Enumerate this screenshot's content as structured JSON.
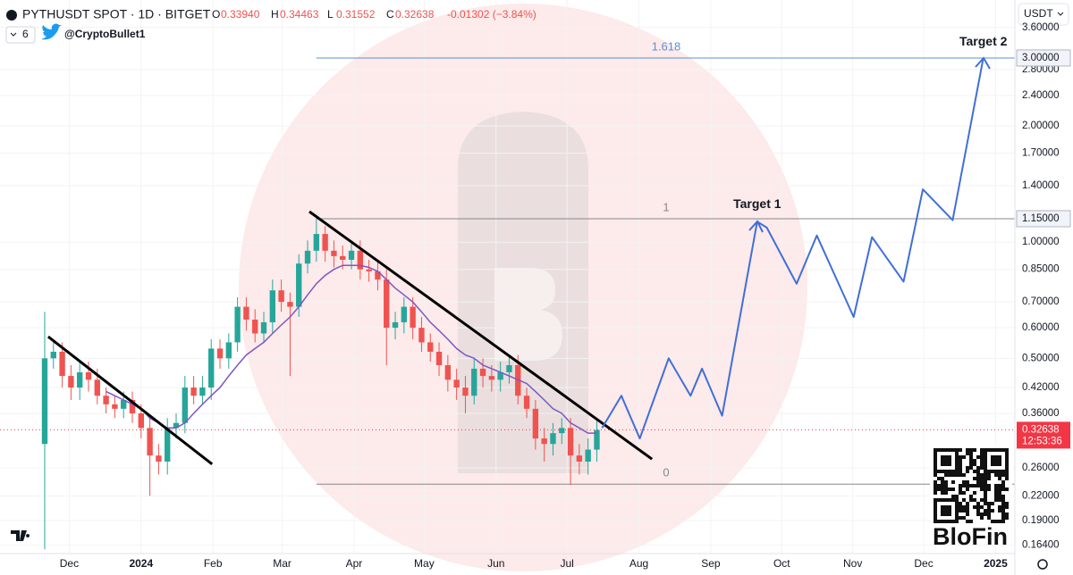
{
  "header": {
    "symbol": "PYTHUSDT SPOT · 1D · BITGET",
    "open_label": "O",
    "open": "0.33940",
    "high_label": "H",
    "high": "0.34463",
    "low_label": "L",
    "low": "0.31552",
    "close_label": "C",
    "close": "0.32638",
    "change": "-0.01302 (−3.84%)",
    "indicator_count": "6",
    "author": "@CryptoBullet1",
    "currency": "USDT"
  },
  "watermark": "BloFin",
  "chart_data": {
    "type": "candlestick",
    "log_scale": true,
    "xlim": [
      -5.1,
      110.7
    ],
    "ylim": [
      0.1527,
      4.24
    ],
    "xticks": [
      {
        "value": 2.8,
        "label": "Dec"
      },
      {
        "value": 11,
        "label": "2024"
      },
      {
        "value": 19.2,
        "label": "Feb"
      },
      {
        "value": 27.1,
        "label": "Mar"
      },
      {
        "value": 35.3,
        "label": "Apr"
      },
      {
        "value": 43.3,
        "label": "May"
      },
      {
        "value": 51.5,
        "label": "Jun"
      },
      {
        "value": 59.6,
        "label": "Jul"
      },
      {
        "value": 67.8,
        "label": "Aug"
      },
      {
        "value": 76,
        "label": "Sep"
      },
      {
        "value": 84.1,
        "label": "Oct"
      },
      {
        "value": 92.2,
        "label": "Nov"
      },
      {
        "value": 100.3,
        "label": "Dec"
      },
      {
        "value": 108.5,
        "label": "2025"
      }
    ],
    "yticks": [
      {
        "value": 3.6,
        "label": "3.60000"
      },
      {
        "value": 2.8,
        "label": "2.80000"
      },
      {
        "value": 2.4,
        "label": "2.40000"
      },
      {
        "value": 2,
        "label": "2.00000"
      },
      {
        "value": 1.7,
        "label": "1.70000"
      },
      {
        "value": 1.4,
        "label": "1.40000"
      },
      {
        "value": 1,
        "label": "1.00000"
      },
      {
        "value": 0.85,
        "label": "0.85000"
      },
      {
        "value": 0.7,
        "label": "0.70000"
      },
      {
        "value": 0.6,
        "label": "0.60000"
      },
      {
        "value": 0.5,
        "label": "0.50000"
      },
      {
        "value": 0.42,
        "label": "0.42000"
      },
      {
        "value": 0.36,
        "label": "0.36000"
      },
      {
        "value": 0.26,
        "label": "0.26000"
      },
      {
        "value": 0.22,
        "label": "0.22000"
      },
      {
        "value": 0.19,
        "label": "0.19000"
      },
      {
        "value": 0.164,
        "label": "0.16400"
      }
    ],
    "up_color": "#26a69a",
    "down_color": "#ef5350",
    "open": [
      0.3,
      0.5,
      0.52,
      0.45,
      0.42,
      0.46,
      0.44,
      0.4,
      0.38,
      0.37,
      0.39,
      0.36,
      0.33,
      0.28,
      0.27,
      0.33,
      0.34,
      0.42,
      0.4,
      0.42,
      0.53,
      0.5,
      0.55,
      0.68,
      0.63,
      0.58,
      0.62,
      0.75,
      0.7,
      0.68,
      0.88,
      0.95,
      1.05,
      0.95,
      0.92,
      0.9,
      0.95,
      0.85,
      0.84,
      0.8,
      0.6,
      0.62,
      0.68,
      0.6,
      0.55,
      0.52,
      0.48,
      0.44,
      0.42,
      0.4,
      0.47,
      0.45,
      0.44,
      0.46,
      0.48,
      0.4,
      0.37,
      0.31,
      0.3,
      0.32,
      0.33,
      0.28,
      0.27,
      0.29
    ],
    "high": [
      0.66,
      0.55,
      0.55,
      0.48,
      0.49,
      0.49,
      0.47,
      0.42,
      0.4,
      0.41,
      0.41,
      0.38,
      0.35,
      0.3,
      0.35,
      0.36,
      0.45,
      0.45,
      0.45,
      0.56,
      0.56,
      0.58,
      0.72,
      0.72,
      0.67,
      0.66,
      0.8,
      0.8,
      0.74,
      0.93,
      1.01,
      1.15,
      1.1,
      1.01,
      0.98,
      1.01,
      1.01,
      0.9,
      0.89,
      0.85,
      0.66,
      0.72,
      0.72,
      0.64,
      0.58,
      0.55,
      0.51,
      0.47,
      0.45,
      0.5,
      0.5,
      0.48,
      0.49,
      0.51,
      0.51,
      0.42,
      0.39,
      0.33,
      0.34,
      0.35,
      0.35,
      0.3,
      0.31,
      0.345
    ],
    "low": [
      0.16,
      0.47,
      0.42,
      0.39,
      0.39,
      0.41,
      0.38,
      0.36,
      0.35,
      0.35,
      0.34,
      0.31,
      0.22,
      0.25,
      0.25,
      0.31,
      0.32,
      0.38,
      0.38,
      0.39,
      0.47,
      0.47,
      0.52,
      0.59,
      0.55,
      0.55,
      0.58,
      0.66,
      0.45,
      0.64,
      0.83,
      0.89,
      0.89,
      0.86,
      0.85,
      0.85,
      0.8,
      0.79,
      0.75,
      0.48,
      0.56,
      0.58,
      0.56,
      0.52,
      0.49,
      0.45,
      0.41,
      0.39,
      0.36,
      0.38,
      0.42,
      0.41,
      0.41,
      0.43,
      0.38,
      0.35,
      0.29,
      0.27,
      0.28,
      0.3,
      0.235,
      0.25,
      0.25,
      0.27
    ],
    "close": [
      0.5,
      0.52,
      0.45,
      0.42,
      0.46,
      0.44,
      0.4,
      0.38,
      0.37,
      0.39,
      0.36,
      0.33,
      0.28,
      0.27,
      0.33,
      0.34,
      0.42,
      0.4,
      0.42,
      0.53,
      0.5,
      0.55,
      0.68,
      0.63,
      0.58,
      0.62,
      0.75,
      0.7,
      0.68,
      0.88,
      0.95,
      1.05,
      0.95,
      0.92,
      0.9,
      0.95,
      0.85,
      0.84,
      0.8,
      0.6,
      0.62,
      0.68,
      0.6,
      0.55,
      0.52,
      0.48,
      0.44,
      0.42,
      0.4,
      0.47,
      0.45,
      0.44,
      0.46,
      0.48,
      0.4,
      0.37,
      0.31,
      0.3,
      0.32,
      0.33,
      0.28,
      0.27,
      0.29,
      0.326
    ],
    "ma": {
      "color": "#7e57c2",
      "values": [
        null,
        null,
        null,
        null,
        null,
        null,
        null,
        0.41,
        0.4,
        0.39,
        0.38,
        0.37,
        0.35,
        0.34,
        0.33,
        0.33,
        0.34,
        0.36,
        0.38,
        0.4,
        0.42,
        0.45,
        0.48,
        0.51,
        0.53,
        0.55,
        0.58,
        0.61,
        0.64,
        0.68,
        0.73,
        0.78,
        0.82,
        0.85,
        0.87,
        0.87,
        0.87,
        0.86,
        0.84,
        0.8,
        0.76,
        0.73,
        0.7,
        0.66,
        0.62,
        0.59,
        0.56,
        0.53,
        0.51,
        0.5,
        0.48,
        0.47,
        0.46,
        0.45,
        0.44,
        0.43,
        0.41,
        0.39,
        0.37,
        0.36,
        0.34,
        0.33,
        0.32,
        0.32
      ]
    },
    "trendlines": [
      {
        "x": [
          0.4,
          19.1
        ],
        "y": [
          0.569,
          0.266
        ]
      },
      {
        "x": [
          30.2,
          69.3
        ],
        "y": [
          1.2,
          0.274
        ]
      }
    ],
    "projection": {
      "color": "#3f6fd8",
      "x": [
        63.6,
        65.8,
        67.9,
        71.2,
        73.7,
        75,
        77.3,
        81.3,
        82.4,
        85.8,
        88.1,
        92.3,
        94.4,
        98,
        100.2,
        103.6,
        107.1
      ],
      "y": [
        0.33,
        0.4,
        0.31,
        0.5,
        0.4,
        0.47,
        0.355,
        1.13,
        1.09,
        0.78,
        1.04,
        0.64,
        1.03,
        0.79,
        1.37,
        1.14,
        3.0
      ]
    },
    "fib_levels": [
      {
        "ratio": "1.618",
        "price": 3,
        "price_label": "3.00000",
        "color": "#5b8fd8"
      },
      {
        "ratio": "1",
        "price": 1.15,
        "price_label": "1.15000",
        "color": "#888888"
      },
      {
        "ratio": "0",
        "price": 0.236,
        "color": "#888888"
      }
    ],
    "fib_start_x": 31,
    "annotations": [
      {
        "text": "Target 1",
        "x": 81.3,
        "y": 1.25
      },
      {
        "text": "Target 2",
        "x": 107.1,
        "y": 3.3
      }
    ],
    "last_price": {
      "price": 0.32638,
      "label": "0.32638",
      "countdown": "12:53:36",
      "color": "#f23645"
    }
  }
}
